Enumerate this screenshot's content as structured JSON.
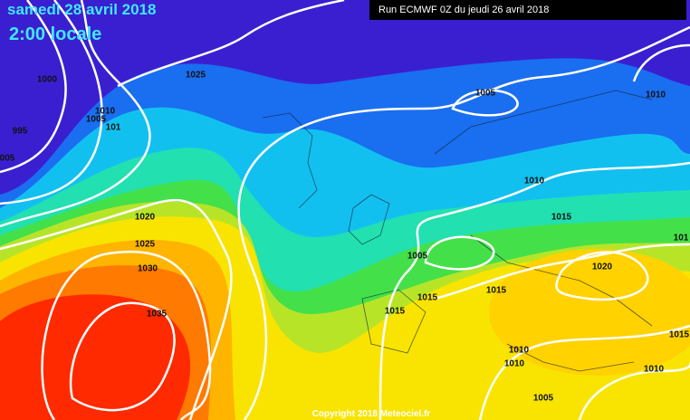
{
  "header": {
    "date": "samedi 28 avril 2018",
    "time": "2:00 locale",
    "run": "Run ECMWF 0Z du jeudi 26 avril 2018"
  },
  "footer": {
    "copyright": "Copyright 2018 Meteociel.fr"
  },
  "isobar_labels": [
    "1000",
    "995",
    "005",
    "1010",
    "1005",
    "101",
    "1025",
    "1005",
    "1010",
    "1020",
    "1025",
    "1030",
    "1035",
    "1010",
    "1015",
    "101",
    "1005",
    "1020",
    "1015",
    "1015",
    "1015",
    "1015",
    "1010",
    "1010",
    "1010",
    "1005"
  ]
}
